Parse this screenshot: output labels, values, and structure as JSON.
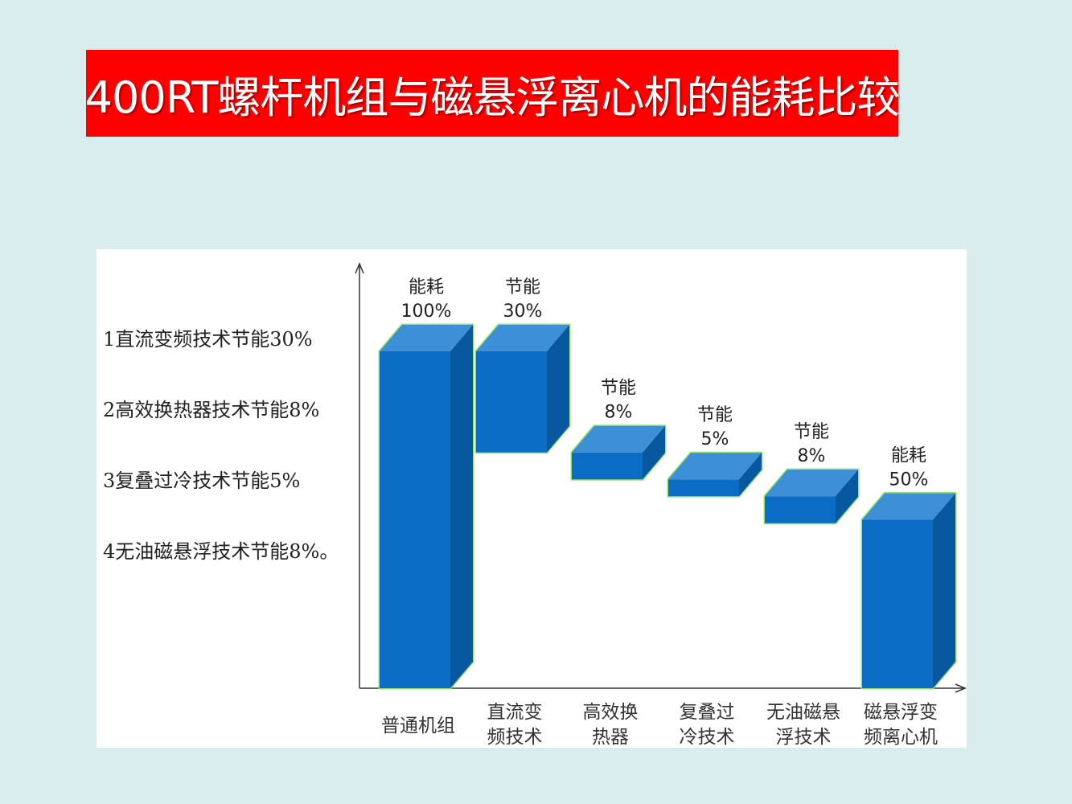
{
  "slide": {
    "title": "400RT螺杆机组与磁悬浮离心机的能耗比较"
  },
  "notes": [
    "1直流变频技术节能30%",
    "2高效换热器技术节能8%",
    "3复叠过冷技术节能5%",
    "4无油磁悬浮技术节能8%。"
  ],
  "colors": {
    "title_bg": "#ff0000",
    "bar_front": "#0a6cc4",
    "bar_top": "#3d8fd6",
    "bar_side": "#07589f",
    "bar_outline": "#99e36a"
  },
  "chart_data": {
    "type": "bar",
    "subtype": "waterfall-3d",
    "categories": [
      [
        "普通机组"
      ],
      [
        "直流变",
        "频技术"
      ],
      [
        "高效换",
        "热器"
      ],
      [
        "复叠过",
        "冷技术"
      ],
      [
        "无油磁悬",
        "浮技术"
      ],
      [
        "磁悬浮变",
        "频离心机"
      ]
    ],
    "bars": [
      {
        "kind": "total",
        "start": 0,
        "end": 100,
        "label_top": "能耗",
        "label_value": "100%"
      },
      {
        "kind": "delta",
        "start": 70,
        "end": 100,
        "label_top": "节能",
        "label_value": "30%"
      },
      {
        "kind": "delta",
        "start": 62,
        "end": 70,
        "label_top": "节能",
        "label_value": "8%"
      },
      {
        "kind": "delta",
        "start": 57,
        "end": 62,
        "label_top": "节能",
        "label_value": "5%"
      },
      {
        "kind": "delta",
        "start": 49,
        "end": 57,
        "label_top": "节能",
        "label_value": "8%"
      },
      {
        "kind": "total",
        "start": 0,
        "end": 50,
        "label_top": "能耗",
        "label_value": "50%"
      }
    ],
    "ylim": [
      0,
      100
    ],
    "grid": false,
    "legend": "none"
  }
}
